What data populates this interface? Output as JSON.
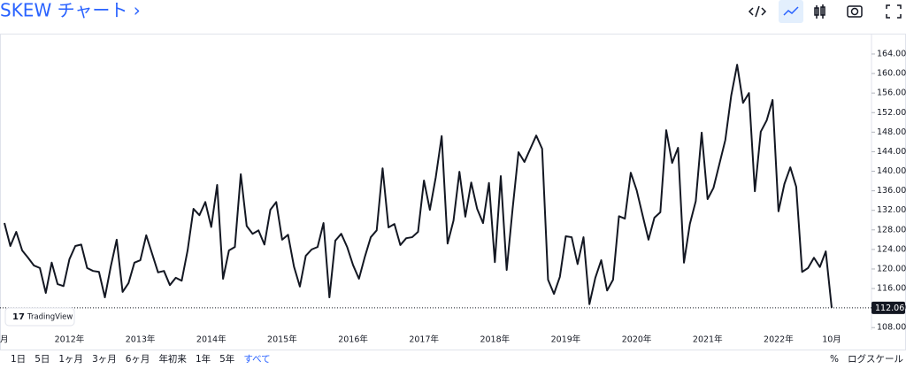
{
  "header": {
    "title": "SKEW チャート ›"
  },
  "chart_data": {
    "type": "line",
    "categories": [
      "月",
      null,
      null,
      null,
      null,
      null,
      null,
      null,
      null,
      null,
      null,
      "2012年",
      null,
      null,
      null,
      null,
      null,
      null,
      null,
      null,
      null,
      null,
      null,
      "2013年",
      null,
      null,
      null,
      null,
      null,
      null,
      null,
      null,
      null,
      null,
      null,
      "2014年",
      null,
      null,
      null,
      null,
      null,
      null,
      null,
      null,
      null,
      null,
      null,
      "2015年",
      null,
      null,
      null,
      null,
      null,
      null,
      null,
      null,
      null,
      null,
      null,
      "2016年",
      null,
      null,
      null,
      null,
      null,
      null,
      null,
      null,
      null,
      null,
      null,
      "2017年",
      null,
      null,
      null,
      null,
      null,
      null,
      null,
      null,
      null,
      null,
      null,
      "2018年",
      null,
      null,
      null,
      null,
      null,
      null,
      null,
      null,
      null,
      null,
      null,
      "2019年",
      null,
      null,
      null,
      null,
      null,
      null,
      null,
      null,
      null,
      null,
      null,
      "2020年",
      null,
      null,
      null,
      null,
      null,
      null,
      null,
      null,
      null,
      null,
      null,
      "2021年",
      null,
      null,
      null,
      null,
      null,
      null,
      null,
      null,
      null,
      null,
      null,
      "2022年",
      null,
      null,
      null,
      null,
      null,
      null,
      null,
      null,
      "10月"
    ],
    "values": [
      129.4,
      124.7,
      127.6,
      123.8,
      122.3,
      120.7,
      120.2,
      115.1,
      121.3,
      116.9,
      116.5,
      122,
      124.7,
      125,
      120.2,
      119.6,
      119.4,
      114.2,
      120.5,
      126,
      115.3,
      117.1,
      121.3,
      121.8,
      126.9,
      123.1,
      119.3,
      119.6,
      116.7,
      118.2,
      117.6,
      123.8,
      132.3,
      131,
      133.7,
      128.6,
      137.2,
      118,
      123.8,
      124.5,
      139.4,
      128.8,
      127.2,
      127.9,
      125,
      132.1,
      133.7,
      126,
      127,
      120.5,
      116.4,
      122.7,
      124,
      124.5,
      129.4,
      114.2,
      125.8,
      127.2,
      124.5,
      120.8,
      118,
      122.5,
      126.5,
      127.9,
      140.6,
      128.5,
      129.2,
      124.9,
      126.3,
      126.5,
      127.6,
      138.1,
      132.1,
      138.8,
      147.2,
      125.2,
      129.9,
      139.9,
      130.7,
      137.7,
      132.3,
      129.4,
      137.6,
      121.4,
      139,
      119.8,
      132.3,
      143.9,
      141.9,
      144.6,
      147.3,
      144.6,
      117.8,
      114.9,
      118.4,
      126.7,
      126.5,
      121,
      126.5,
      112.8,
      118.2,
      121.8,
      115.6,
      117.8,
      130.8,
      130.3,
      139.7,
      136.1,
      131,
      126,
      130.5,
      131.6,
      148.4,
      141.7,
      144.8,
      121.3,
      129.2,
      133.9,
      147.9,
      134.3,
      136.6,
      141.5,
      146.4,
      155.5,
      161.8,
      154,
      156,
      135.9,
      148.1,
      150.4,
      154.6,
      131.8,
      137.4,
      140.8,
      136.8,
      119.4,
      120.2,
      122.3,
      120.4,
      123.6,
      112.06
    ],
    "color": "#131722",
    "ylim": [
      107.5,
      167.8
    ],
    "yticks": [
      {
        "value": 108,
        "label": "108.00"
      },
      {
        "value": 112,
        "label": "112.00"
      },
      {
        "value": 116,
        "label": "116.00"
      },
      {
        "value": 120,
        "label": "120.00"
      },
      {
        "value": 124,
        "label": "124.00"
      },
      {
        "value": 128,
        "label": "128.00"
      },
      {
        "value": 132,
        "label": "132.00"
      },
      {
        "value": 136,
        "label": "136.00"
      },
      {
        "value": 140,
        "label": "140.00"
      },
      {
        "value": 144,
        "label": "144.00"
      },
      {
        "value": 148,
        "label": "148.00"
      },
      {
        "value": 152,
        "label": "152.00"
      },
      {
        "value": 156,
        "label": "156.00"
      },
      {
        "value": 160,
        "label": "160.00"
      },
      {
        "value": 164,
        "label": "164.00"
      }
    ],
    "watermark": "TradingView"
  },
  "range_buttons": [
    "1日",
    "5日",
    "1ヶ月",
    "3ヶ月",
    "6ヶ月",
    "年初来",
    "1年",
    "5年",
    "すべて"
  ],
  "selected_range": 8,
  "scale_buttons": [
    "%",
    "ログスケール"
  ]
}
